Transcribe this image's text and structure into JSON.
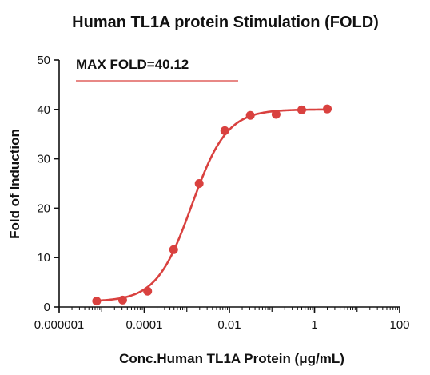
{
  "chart_data": {
    "type": "scatter",
    "title": "Human TL1A protein Stimulation (FOLD)",
    "xlabel": "Conc.Human TL1A Protein (μg/mL)",
    "ylabel": "Fold of Induction",
    "x_scale": "log",
    "xlim": [
      1e-06,
      100
    ],
    "ylim": [
      0,
      50
    ],
    "x_ticks": [
      1e-06,
      0.0001,
      0.01,
      1,
      100
    ],
    "x_tick_labels": [
      "0.000001",
      "0.0001",
      "0.01",
      "1",
      "100"
    ],
    "y_ticks": [
      0,
      10,
      20,
      30,
      40,
      50
    ],
    "y_tick_labels": [
      "0",
      "10",
      "20",
      "30",
      "40",
      "50"
    ],
    "grid": false,
    "colors": {
      "series": "#d9413f",
      "annotation_line": "#d9413f",
      "axis": "#111111"
    },
    "series": [
      {
        "x": [
          7.6e-06,
          3.1e-05,
          0.00012,
          0.00049,
          0.00195,
          0.0078,
          0.031,
          0.125,
          0.5,
          2.0
        ],
        "values": [
          1.2,
          1.4,
          3.2,
          11.6,
          25.0,
          35.7,
          38.8,
          39.0,
          39.9,
          40.1
        ],
        "fit": "4PL"
      }
    ],
    "annotation": "MAX FOLD=40.12"
  }
}
